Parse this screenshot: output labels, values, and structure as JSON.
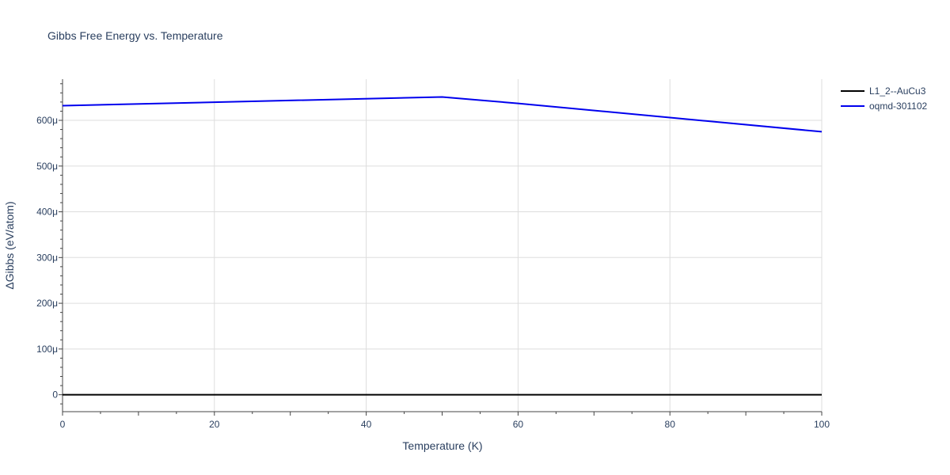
{
  "chart_data": {
    "type": "line",
    "title": "Gibbs Free Energy vs. Temperature",
    "xlabel": "Temperature (K)",
    "ylabel": "ΔGibbs (eV/atom)",
    "xlim": [
      0,
      100
    ],
    "ylim": [
      -3.7e-05,
      0.00069
    ],
    "x_ticks": [
      0,
      20,
      40,
      60,
      80,
      100
    ],
    "x_tick_labels": [
      "0",
      "20",
      "40",
      "60",
      "80",
      "100"
    ],
    "y_ticks": [
      0,
      0.0001,
      0.0002,
      0.0003,
      0.0004,
      0.0005,
      0.0006
    ],
    "y_tick_labels": [
      "0",
      "100μ",
      "200μ",
      "300μ",
      "400μ",
      "500μ",
      "600μ"
    ],
    "grid": true,
    "legend_position": "top-right",
    "series": [
      {
        "name": "L1_2--AuCu3",
        "color": "#000000",
        "x": [
          0,
          10,
          20,
          30,
          40,
          50,
          60,
          70,
          80,
          90,
          100
        ],
        "y": [
          0,
          0,
          0,
          0,
          0,
          0,
          0,
          0,
          0,
          0,
          0
        ]
      },
      {
        "name": "oqmd-301102",
        "color": "#0000ee",
        "x": [
          0,
          50,
          60,
          80,
          100
        ],
        "y": [
          0.000632,
          0.000651,
          0.000637,
          0.000606,
          0.000575
        ]
      }
    ]
  }
}
